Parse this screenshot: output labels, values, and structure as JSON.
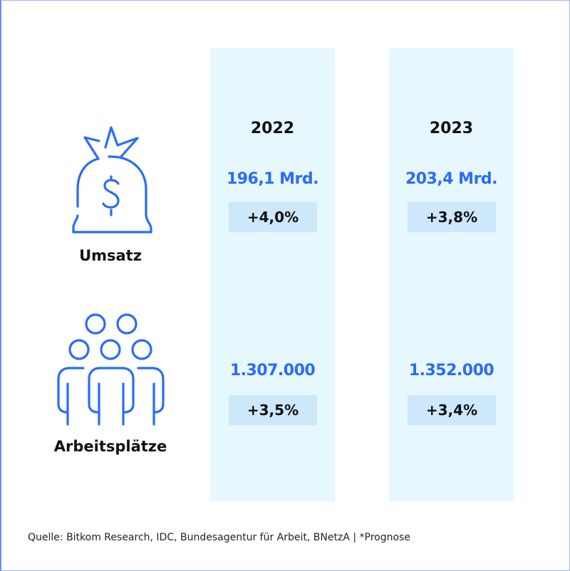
{
  "columns": [
    {
      "year": "2022",
      "umsatz": "196,1 Mrd.",
      "umsatz_change": "+4,0%",
      "jobs": "1.307.000",
      "jobs_change": "+3,5%"
    },
    {
      "year": "2023",
      "umsatz": "203,4 Mrd.",
      "umsatz_change": "+3,8%",
      "jobs": "1.352.000",
      "jobs_change": "+3,4%"
    }
  ],
  "rows": {
    "umsatz_label": "Umsatz",
    "jobs_label": "Arbeitsplätze"
  },
  "icons": {
    "umsatz": "money-bag-icon",
    "jobs": "people-group-icon"
  },
  "colors": {
    "accent": "#2a6cf6",
    "column_bg": "#e6f7fd",
    "badge_bg": "#cde8fb"
  },
  "source": "Quelle: Bitkom Research, IDC, Bundesagentur für Arbeit, BNetzA | *Prognose"
}
